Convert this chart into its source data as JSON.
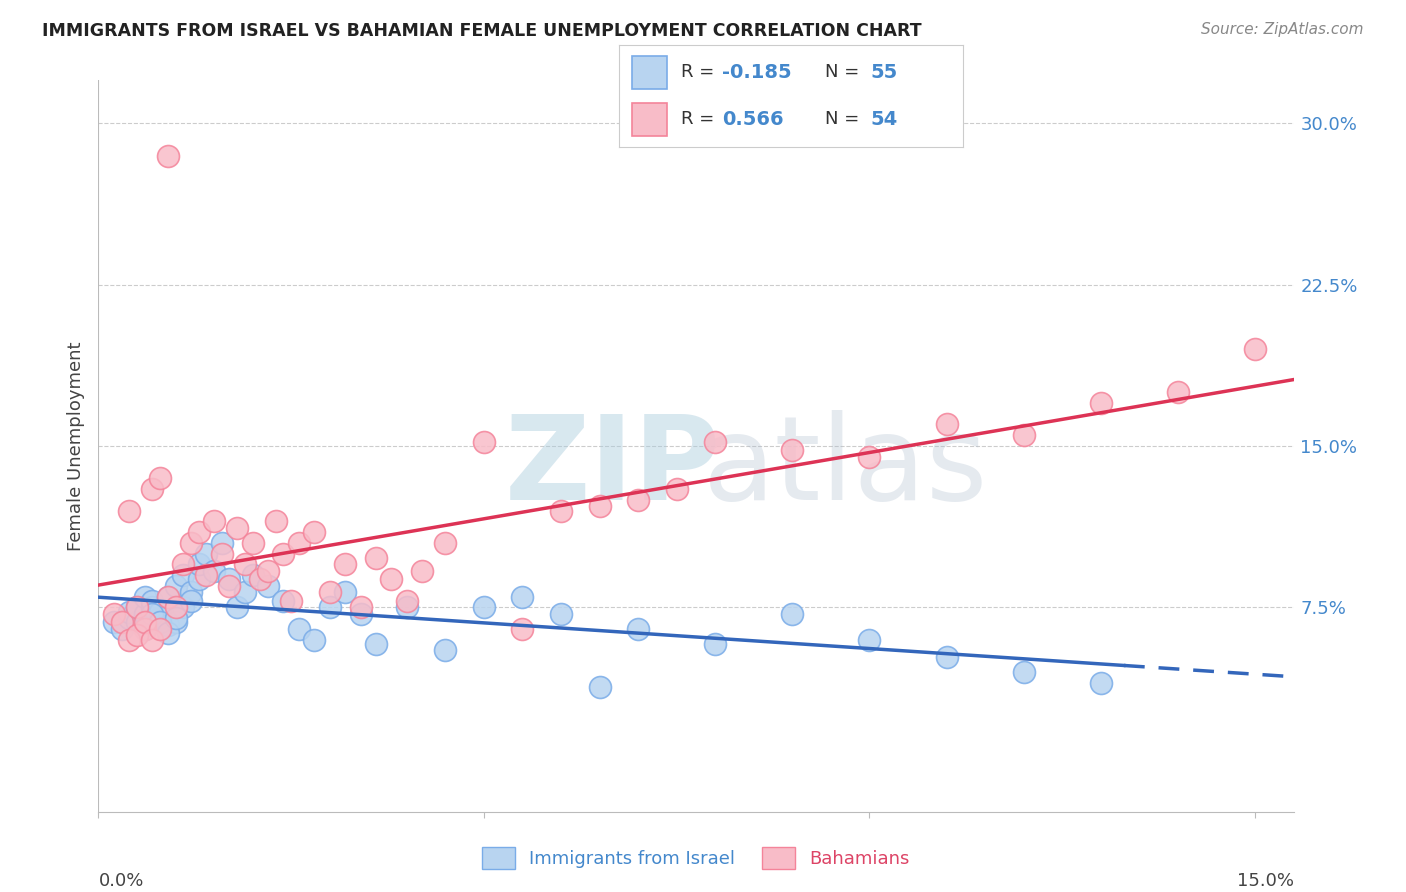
{
  "title": "IMMIGRANTS FROM ISRAEL VS BAHAMIAN FEMALE UNEMPLOYMENT CORRELATION CHART",
  "source": "Source: ZipAtlas.com",
  "ylabel": "Female Unemployment",
  "xlim": [
    0.0,
    0.155
  ],
  "ylim": [
    -0.02,
    0.32
  ],
  "yticks": [
    0.075,
    0.15,
    0.225,
    0.3
  ],
  "ytick_labels": [
    "7.5%",
    "15.0%",
    "22.5%",
    "30.0%"
  ],
  "blue_color": "#7AACE8",
  "pink_color": "#F4849A",
  "blue_fill": "#B8D4F0",
  "pink_fill": "#F8BCC8",
  "trend_blue": "#3366BB",
  "trend_pink": "#DD3355",
  "blue_scatter_x": [
    0.002,
    0.003,
    0.004,
    0.004,
    0.005,
    0.005,
    0.006,
    0.006,
    0.007,
    0.007,
    0.008,
    0.008,
    0.009,
    0.009,
    0.01,
    0.01,
    0.011,
    0.011,
    0.012,
    0.012,
    0.013,
    0.013,
    0.014,
    0.015,
    0.016,
    0.017,
    0.018,
    0.019,
    0.02,
    0.022,
    0.024,
    0.026,
    0.028,
    0.03,
    0.032,
    0.034,
    0.036,
    0.04,
    0.045,
    0.05,
    0.055,
    0.06,
    0.065,
    0.07,
    0.08,
    0.09,
    0.1,
    0.11,
    0.12,
    0.13,
    0.006,
    0.007,
    0.008,
    0.009,
    0.01
  ],
  "blue_scatter_y": [
    0.068,
    0.065,
    0.07,
    0.073,
    0.068,
    0.075,
    0.072,
    0.08,
    0.075,
    0.078,
    0.07,
    0.073,
    0.067,
    0.08,
    0.085,
    0.068,
    0.075,
    0.09,
    0.082,
    0.078,
    0.088,
    0.095,
    0.1,
    0.092,
    0.105,
    0.088,
    0.075,
    0.082,
    0.09,
    0.085,
    0.078,
    0.065,
    0.06,
    0.075,
    0.082,
    0.072,
    0.058,
    0.075,
    0.055,
    0.075,
    0.08,
    0.072,
    0.038,
    0.065,
    0.058,
    0.072,
    0.06,
    0.052,
    0.045,
    0.04,
    0.065,
    0.072,
    0.068,
    0.063,
    0.07
  ],
  "pink_scatter_x": [
    0.002,
    0.003,
    0.004,
    0.005,
    0.006,
    0.007,
    0.008,
    0.009,
    0.01,
    0.011,
    0.012,
    0.013,
    0.014,
    0.015,
    0.016,
    0.017,
    0.018,
    0.019,
    0.02,
    0.021,
    0.022,
    0.023,
    0.024,
    0.025,
    0.026,
    0.028,
    0.03,
    0.032,
    0.034,
    0.036,
    0.038,
    0.04,
    0.042,
    0.045,
    0.05,
    0.055,
    0.06,
    0.065,
    0.07,
    0.075,
    0.08,
    0.09,
    0.1,
    0.11,
    0.12,
    0.13,
    0.14,
    0.15,
    0.004,
    0.005,
    0.006,
    0.007,
    0.008,
    0.009
  ],
  "pink_scatter_y": [
    0.072,
    0.068,
    0.12,
    0.075,
    0.065,
    0.13,
    0.135,
    0.08,
    0.075,
    0.095,
    0.105,
    0.11,
    0.09,
    0.115,
    0.1,
    0.085,
    0.112,
    0.095,
    0.105,
    0.088,
    0.092,
    0.115,
    0.1,
    0.078,
    0.105,
    0.11,
    0.082,
    0.095,
    0.075,
    0.098,
    0.088,
    0.078,
    0.092,
    0.105,
    0.152,
    0.065,
    0.12,
    0.122,
    0.125,
    0.13,
    0.152,
    0.148,
    0.145,
    0.16,
    0.155,
    0.17,
    0.175,
    0.195,
    0.06,
    0.062,
    0.068,
    0.06,
    0.065,
    0.285
  ]
}
